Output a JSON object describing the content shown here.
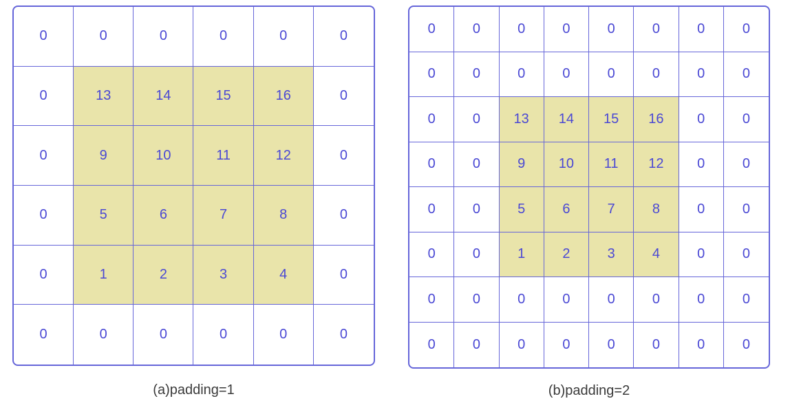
{
  "colors": {
    "line": "#6565d9",
    "number": "#4a48d4",
    "highlight": "#e9e4aa",
    "caption": "#3a3a3a",
    "background": "#ffffff"
  },
  "highlight_rule": "nonzero",
  "panels": [
    {
      "id": "a",
      "caption": "(a)padding=1",
      "cols": 6,
      "rows": 6,
      "values": [
        [
          "0",
          "0",
          "0",
          "0",
          "0",
          "0"
        ],
        [
          "0",
          "13",
          "14",
          "15",
          "16",
          "0"
        ],
        [
          "0",
          "9",
          "10",
          "11",
          "12",
          "0"
        ],
        [
          "0",
          "5",
          "6",
          "7",
          "8",
          "0"
        ],
        [
          "0",
          "1",
          "2",
          "3",
          "4",
          "0"
        ],
        [
          "0",
          "0",
          "0",
          "0",
          "0",
          "0"
        ]
      ]
    },
    {
      "id": "b",
      "caption": "(b)padding=2",
      "cols": 8,
      "rows": 8,
      "values": [
        [
          "0",
          "0",
          "0",
          "0",
          "0",
          "0",
          "0",
          "0"
        ],
        [
          "0",
          "0",
          "0",
          "0",
          "0",
          "0",
          "0",
          "0"
        ],
        [
          "0",
          "0",
          "13",
          "14",
          "15",
          "16",
          "0",
          "0"
        ],
        [
          "0",
          "0",
          "9",
          "10",
          "11",
          "12",
          "0",
          "0"
        ],
        [
          "0",
          "0",
          "5",
          "6",
          "7",
          "8",
          "0",
          "0"
        ],
        [
          "0",
          "0",
          "1",
          "2",
          "3",
          "4",
          "0",
          "0"
        ],
        [
          "0",
          "0",
          "0",
          "0",
          "0",
          "0",
          "0",
          "0"
        ],
        [
          "0",
          "0",
          "0",
          "0",
          "0",
          "0",
          "0",
          "0"
        ]
      ]
    }
  ]
}
